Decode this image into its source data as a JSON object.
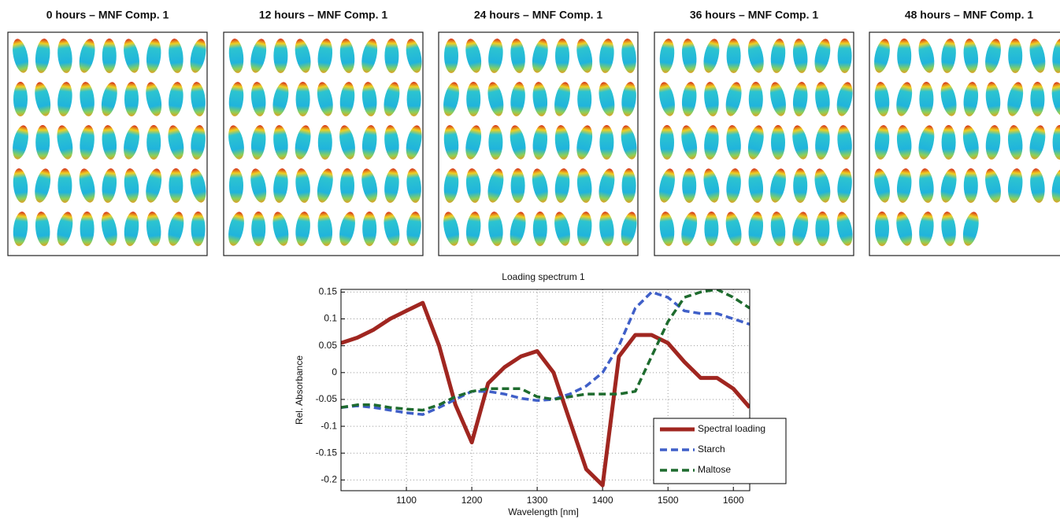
{
  "panels": [
    {
      "title": "0 hours – MNF Comp. 1"
    },
    {
      "title": "12 hours – MNF Comp. 1"
    },
    {
      "title": "24 hours – MNF Comp. 1"
    },
    {
      "title": "36 hours – MNF Comp. 1"
    },
    {
      "title": "48 hours – MNF Comp. 1"
    }
  ],
  "chart_data": {
    "type": "line",
    "title": "Loading spectrum 1",
    "x_label": "Wavelength [nm]",
    "y_label": "Rel. Absorbance",
    "x": [
      1000,
      1025,
      1050,
      1075,
      1100,
      1125,
      1150,
      1175,
      1200,
      1225,
      1250,
      1275,
      1300,
      1325,
      1350,
      1375,
      1400,
      1425,
      1450,
      1475,
      1500,
      1525,
      1550,
      1575,
      1600,
      1625
    ],
    "series": [
      {
        "name": "Spectral loading",
        "color": "#a02620",
        "style": "solid",
        "values": [
          0.055,
          0.065,
          0.08,
          0.1,
          0.115,
          0.13,
          0.05,
          -0.06,
          -0.13,
          -0.02,
          0.01,
          0.03,
          0.04,
          0.0,
          -0.09,
          -0.18,
          -0.21,
          0.03,
          0.07,
          0.07,
          0.055,
          0.02,
          -0.01,
          -0.01,
          -0.03,
          -0.065
        ]
      },
      {
        "name": "Starch",
        "color": "#3f5fc8",
        "style": "dashed",
        "values": [
          -0.065,
          -0.062,
          -0.065,
          -0.07,
          -0.075,
          -0.078,
          -0.065,
          -0.05,
          -0.035,
          -0.035,
          -0.04,
          -0.048,
          -0.052,
          -0.05,
          -0.04,
          -0.025,
          0.0,
          0.05,
          0.12,
          0.15,
          0.14,
          0.115,
          0.11,
          0.11,
          0.1,
          0.09
        ]
      },
      {
        "name": "Maltose",
        "color": "#1e6b2e",
        "style": "dashed",
        "values": [
          -0.065,
          -0.06,
          -0.06,
          -0.065,
          -0.068,
          -0.07,
          -0.06,
          -0.045,
          -0.035,
          -0.03,
          -0.03,
          -0.03,
          -0.045,
          -0.05,
          -0.045,
          -0.04,
          -0.04,
          -0.04,
          -0.035,
          0.03,
          0.095,
          0.14,
          0.15,
          0.155,
          0.14,
          0.12
        ]
      }
    ],
    "xlim": [
      1000,
      1625
    ],
    "xticks": [
      1100,
      1200,
      1300,
      1400,
      1500,
      1600
    ],
    "ylim": [
      -0.22,
      0.155
    ],
    "yticks": [
      0.15,
      0.1,
      0.05,
      0,
      -0.05,
      -0.1,
      -0.15,
      -0.2
    ],
    "grid": true,
    "legend": "lower right"
  }
}
